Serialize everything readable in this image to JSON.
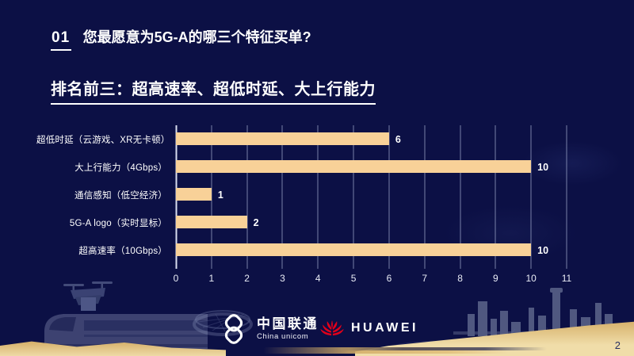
{
  "slide": {
    "background": "#0c1045",
    "page_number": "2"
  },
  "header": {
    "index": "01",
    "title": "您最愿意为5G-A的哪三个特征买单?",
    "subtitle": "排名前三：超高速率、超低时延、大上行能力"
  },
  "chart_data": {
    "type": "bar",
    "orientation": "horizontal",
    "categories": [
      "超低时延（云游戏、XR无卡顿）",
      "大上行能力（4Gbps）",
      "通信感知（低空经济）",
      "5G-A logo（实时显标）",
      "超高速率（10Gbps）"
    ],
    "values": [
      6,
      10,
      1,
      2,
      10
    ],
    "xlim": [
      0,
      11
    ],
    "x_ticks": [
      "0",
      "1",
      "2",
      "3",
      "4",
      "5",
      "6",
      "7",
      "8",
      "9",
      "10",
      "11"
    ],
    "grid": true,
    "legend": false,
    "bar_color": "#f8d198",
    "value_label_color": "#ffffff",
    "gridline_color": "#949cc0"
  },
  "footer": {
    "unicom": {
      "cn": "中国联通",
      "en": "China unicom"
    },
    "huawei": {
      "label": "HUAWEI",
      "brand_color": "#e2001a"
    }
  }
}
